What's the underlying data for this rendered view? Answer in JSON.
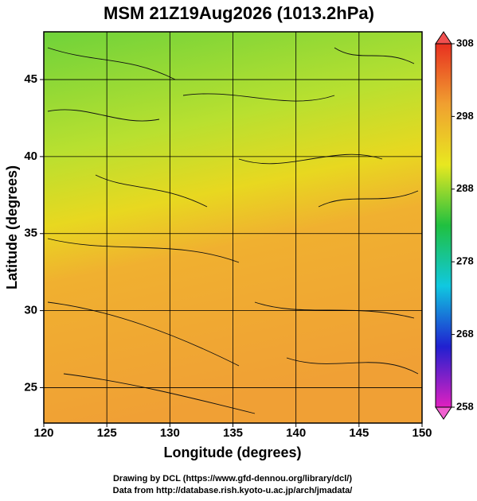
{
  "chart_data": {
    "type": "map",
    "title": "MSM 21Z19Aug2026 (1013.2hPa)",
    "xlabel": "Longitude (degrees)",
    "ylabel": "Latitude  (degrees)",
    "xlim": [
      120,
      150
    ],
    "xticks": [
      120,
      125,
      130,
      135,
      140,
      145,
      150
    ],
    "ylim": [
      22.7,
      48.1
    ],
    "yticks": [
      25,
      30,
      35,
      40,
      45
    ],
    "grid": true,
    "colorbar": {
      "lim": [
        258,
        308
      ],
      "ticks": [
        258,
        268,
        278,
        288,
        298,
        308
      ],
      "colors": [
        "#e020c0",
        "#2020d0",
        "#10c8e0",
        "#20c040",
        "#e8e820",
        "#f0a030",
        "#e83020"
      ]
    },
    "credits": [
      "Drawing by DCL (https://www.gfd-dennou.org/library/dcl/)",
      "Data from http://database.rish.kyoto-u.ac.jp/arch/jmadata/"
    ]
  }
}
